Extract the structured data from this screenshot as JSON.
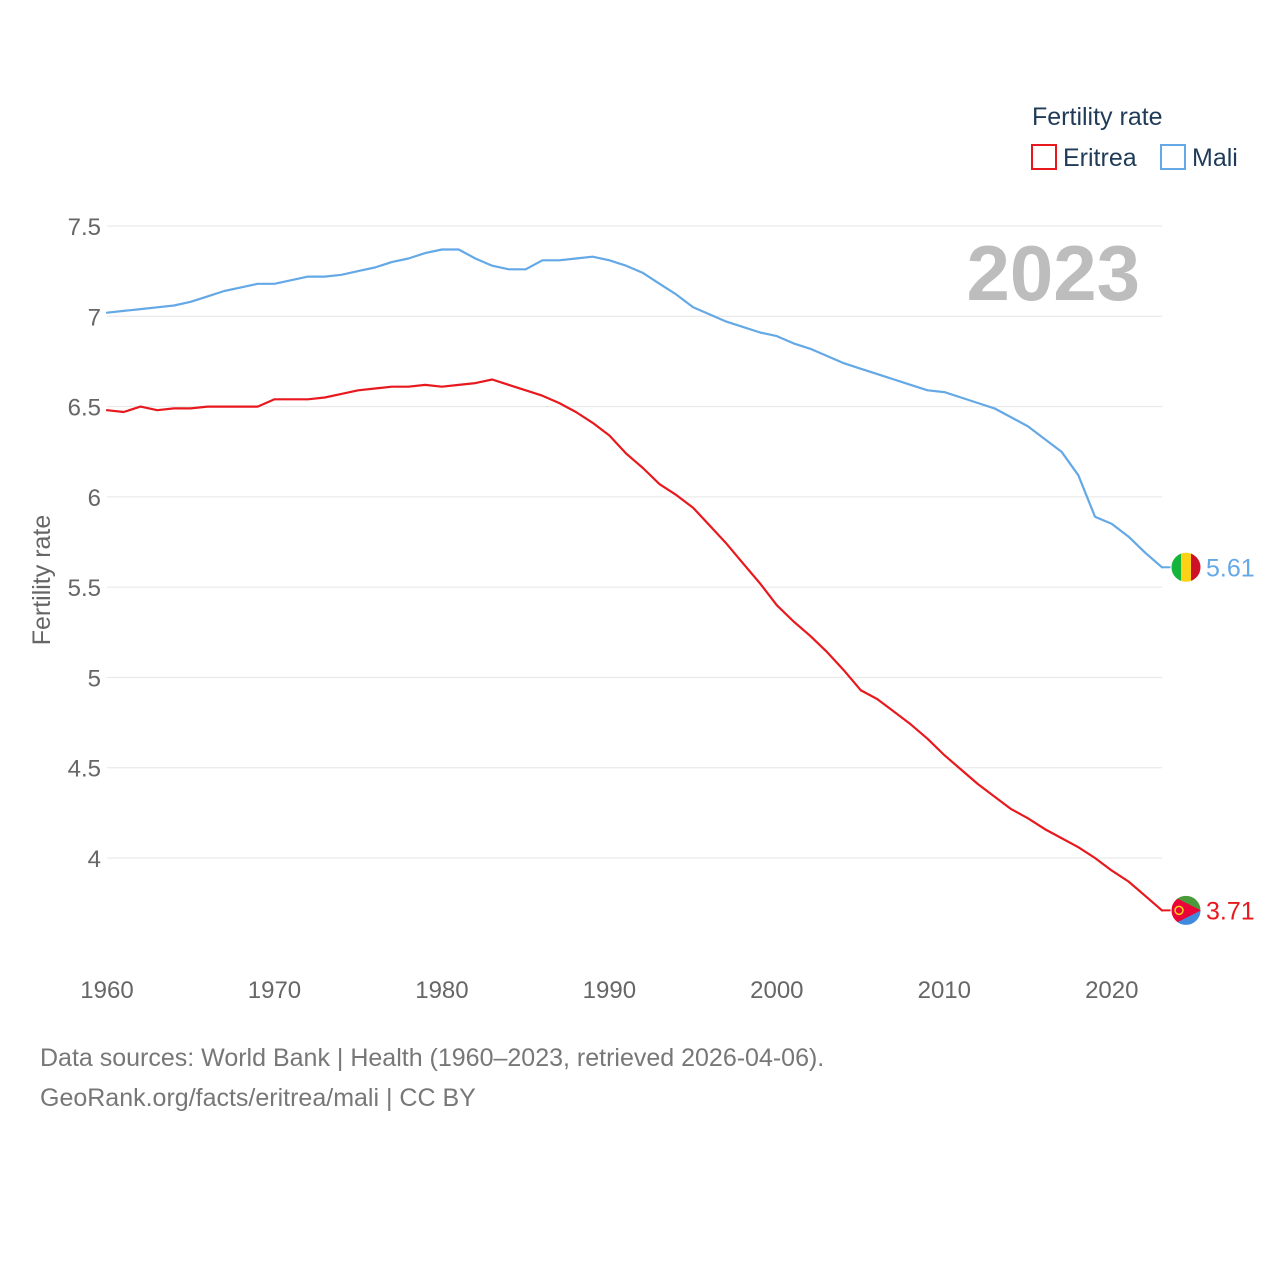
{
  "chart_data": {
    "type": "line",
    "ylabel": "Fertility rate",
    "xlabel": "",
    "year_label": "2023",
    "legend": {
      "title": "Fertility rate",
      "position": "top-right"
    },
    "xlim": [
      1960,
      2023
    ],
    "ylim": [
      3.5,
      7.55
    ],
    "x_ticks": [
      1960,
      1970,
      1980,
      1990,
      2000,
      2010,
      2020
    ],
    "y_ticks": [
      4,
      4.5,
      5,
      5.5,
      6,
      6.5,
      7,
      7.5
    ],
    "y_tick_labels": [
      "4",
      "4.5",
      "5",
      "5.5",
      "6",
      "6.5",
      "7",
      "7.5"
    ],
    "x": [
      1960,
      1961,
      1962,
      1963,
      1964,
      1965,
      1966,
      1967,
      1968,
      1969,
      1970,
      1971,
      1972,
      1973,
      1974,
      1975,
      1976,
      1977,
      1978,
      1979,
      1980,
      1981,
      1982,
      1983,
      1984,
      1985,
      1986,
      1987,
      1988,
      1989,
      1990,
      1991,
      1992,
      1993,
      1994,
      1995,
      1996,
      1997,
      1998,
      1999,
      2000,
      2001,
      2002,
      2003,
      2004,
      2005,
      2006,
      2007,
      2008,
      2009,
      2010,
      2011,
      2012,
      2013,
      2014,
      2015,
      2016,
      2017,
      2018,
      2019,
      2020,
      2021,
      2022,
      2023
    ],
    "series": [
      {
        "name": "Eritrea",
        "color": "#e8191e",
        "end_label": "3.71",
        "flag": "eritrea-flag",
        "values": [
          6.48,
          6.47,
          6.5,
          6.48,
          6.49,
          6.49,
          6.5,
          6.5,
          6.5,
          6.5,
          6.54,
          6.54,
          6.54,
          6.55,
          6.57,
          6.59,
          6.6,
          6.61,
          6.61,
          6.62,
          6.61,
          6.62,
          6.63,
          6.65,
          6.62,
          6.59,
          6.56,
          6.52,
          6.47,
          6.41,
          6.34,
          6.24,
          6.16,
          6.07,
          6.01,
          5.94,
          5.84,
          5.74,
          5.63,
          5.52,
          5.4,
          5.31,
          5.23,
          5.14,
          5.04,
          4.93,
          4.88,
          4.81,
          4.74,
          4.66,
          4.57,
          4.49,
          4.41,
          4.34,
          4.27,
          4.22,
          4.16,
          4.11,
          4.06,
          4.0,
          3.93,
          3.87,
          3.79,
          3.71
        ]
      },
      {
        "name": "Mali",
        "color": "#64a8e6",
        "end_label": "5.61",
        "flag": "mali-flag",
        "values": [
          7.02,
          7.03,
          7.04,
          7.05,
          7.06,
          7.08,
          7.11,
          7.14,
          7.16,
          7.18,
          7.18,
          7.2,
          7.22,
          7.22,
          7.23,
          7.25,
          7.27,
          7.3,
          7.32,
          7.35,
          7.37,
          7.37,
          7.32,
          7.28,
          7.26,
          7.26,
          7.31,
          7.31,
          7.32,
          7.33,
          7.31,
          7.28,
          7.24,
          7.18,
          7.12,
          7.05,
          7.01,
          6.97,
          6.94,
          6.91,
          6.89,
          6.85,
          6.82,
          6.78,
          6.74,
          6.71,
          6.68,
          6.65,
          6.62,
          6.59,
          6.58,
          6.55,
          6.52,
          6.49,
          6.44,
          6.39,
          6.32,
          6.25,
          6.12,
          5.89,
          5.85,
          5.78,
          5.69,
          5.61
        ]
      }
    ]
  },
  "footer": {
    "line1": "Data sources: World Bank | Health (1960–2023, retrieved 2026-04-06).",
    "line2": "GeoRank.org/facts/eritrea/mali | CC BY"
  }
}
